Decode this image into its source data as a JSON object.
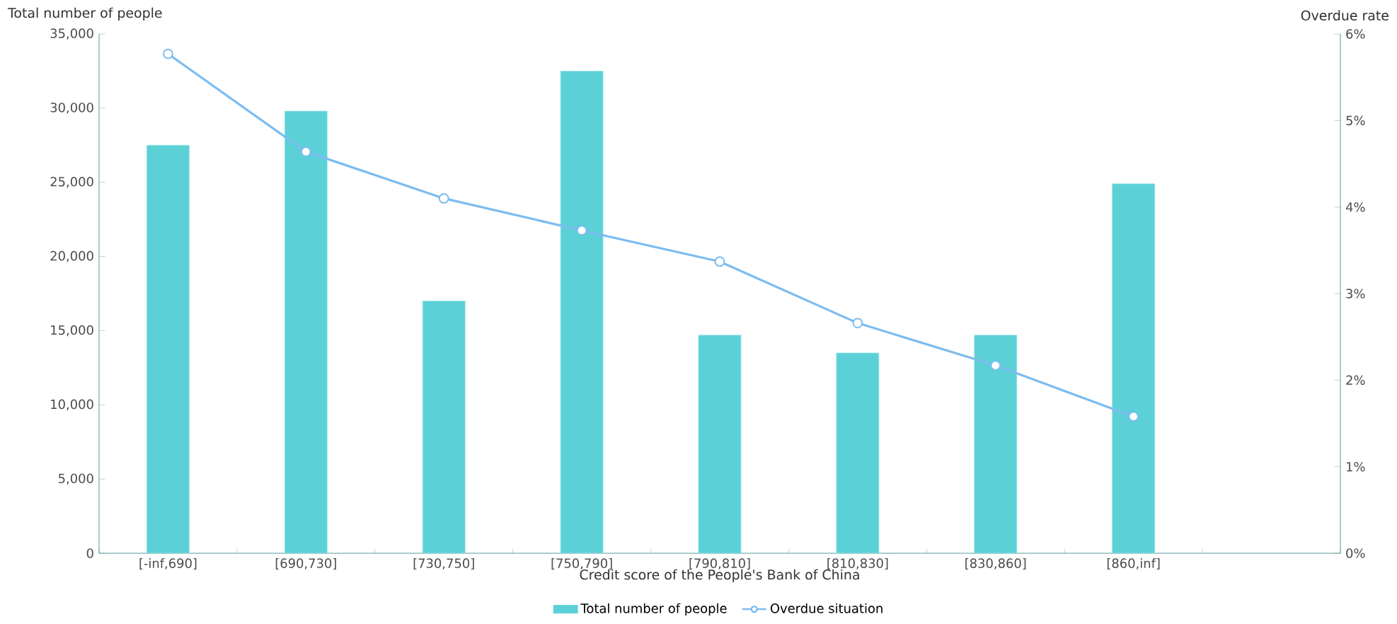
{
  "chart_data": {
    "type": "bar",
    "xlabel": "Credit score of the People's Bank of China",
    "ylabel": "Total number of people",
    "y2label": "Overdue rate",
    "categories": [
      "[-inf,690]",
      "[690,730]",
      "[730,750]",
      "[750,790]",
      "[790,810]",
      "[810,830]",
      "[830,860]",
      "[860,inf]",
      null
    ],
    "series": [
      {
        "name": "Total number of people",
        "color": "#5bd1d7",
        "values": [
          27500,
          29800,
          17000,
          32500,
          14700,
          13500,
          14700,
          24900,
          null
        ]
      },
      {
        "name": "Overdue situation",
        "type": "line",
        "axis": "y2",
        "color": "#7cbcf0",
        "marker": "circle",
        "values": [
          5.77,
          4.64,
          4.1,
          3.73,
          3.37,
          2.66,
          2.17,
          1.58,
          null
        ]
      }
    ],
    "ylim": [
      0,
      35000
    ],
    "yticks": [
      {
        "value": 0,
        "label": "0"
      },
      {
        "value": 5000,
        "label": "5,000"
      },
      {
        "value": 10000,
        "label": "10,000"
      },
      {
        "value": 15000,
        "label": "15,000"
      },
      {
        "value": 20000,
        "label": "20,000"
      },
      {
        "value": 25000,
        "label": "25,000"
      },
      {
        "value": 30000,
        "label": "30,000"
      },
      {
        "value": 35000,
        "label": "35,000"
      }
    ],
    "y2lim": [
      0,
      6
    ],
    "y2ticks": [
      {
        "value": 0,
        "label": "0%"
      },
      {
        "value": 1,
        "label": "1%"
      },
      {
        "value": 2,
        "label": "2%"
      },
      {
        "value": 3,
        "label": "3%"
      },
      {
        "value": 4,
        "label": "4%"
      },
      {
        "value": 5,
        "label": "5%"
      },
      {
        "value": 6,
        "label": "6%"
      }
    ],
    "legend": "bottom",
    "grid": false
  }
}
